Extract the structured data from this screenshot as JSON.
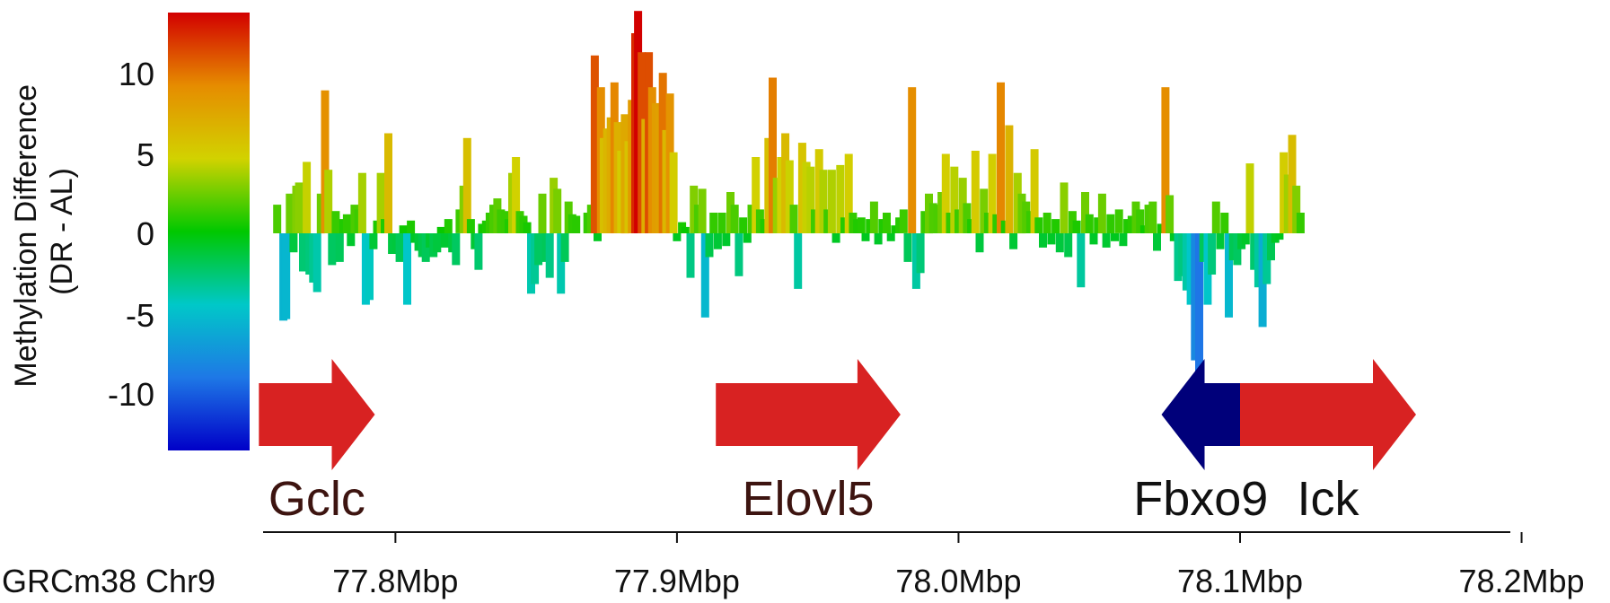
{
  "chart_data": {
    "type": "bar",
    "title": "",
    "xlabel": "",
    "ylabel": "Methylation Difference\n(DR - AL)",
    "ylabel_lines": [
      "Methylation Difference",
      "(DR - AL)"
    ],
    "ylim": [
      -13.5,
      13.9
    ],
    "yticks": [
      10,
      5,
      0,
      -5,
      -10
    ],
    "ytick_labels": [
      "10",
      "5",
      "0",
      "-5",
      "-10"
    ],
    "xlim_mbp": [
      77.753,
      78.196
    ],
    "xticks_mbp": [
      77.8,
      77.9,
      78.0,
      78.1,
      78.2
    ],
    "xtick_labels": [
      "77.8Mbp",
      "77.9Mbp",
      "78.0Mbp",
      "78.1Mbp",
      "78.2Mbp"
    ],
    "genome_label": "GRCm38 Chr9",
    "grid": false,
    "colorbar": {
      "min": -13.5,
      "max": 13.9,
      "colors": [
        "#0000c8",
        "#1e78e6",
        "#00c8c8",
        "#00c800",
        "#d2d200",
        "#e68c00",
        "#d20000"
      ]
    },
    "series": [
      {
        "values": [
          [
            77.758,
            1.8
          ],
          [
            77.7602,
            -5.5
          ],
          [
            77.7612,
            -5.4
          ],
          [
            77.7625,
            2.5
          ],
          [
            77.7638,
            -1.2
          ],
          [
            77.7648,
            3.0
          ],
          [
            77.7658,
            3.2
          ],
          [
            77.7672,
            -2.4
          ],
          [
            77.7685,
            4.5
          ],
          [
            77.7695,
            -2.6
          ],
          [
            77.7708,
            -3.1
          ],
          [
            77.7722,
            -3.7
          ],
          [
            77.7735,
            2.5
          ],
          [
            77.775,
            9.0
          ],
          [
            77.7762,
            4.0
          ],
          [
            77.7775,
            -2.0
          ],
          [
            77.7788,
            1.4
          ],
          [
            77.7802,
            -1.8
          ],
          [
            77.7815,
            0.9
          ],
          [
            77.7828,
            1.2
          ],
          [
            77.7842,
            -0.8
          ],
          [
            77.7855,
            1.8
          ],
          [
            77.7868,
            1.5
          ],
          [
            77.7882,
            3.8
          ],
          [
            77.7895,
            -4.5
          ],
          [
            77.7908,
            -4.2
          ],
          [
            77.7922,
            -1.0
          ],
          [
            77.7935,
            0.8
          ],
          [
            77.7948,
            3.8
          ],
          [
            77.7962,
            0.9
          ],
          [
            77.7975,
            6.3
          ],
          [
            77.7988,
            -1.3
          ],
          [
            77.8002,
            -1.2
          ],
          [
            77.8015,
            -1.8
          ],
          [
            77.8028,
            0.5
          ],
          [
            77.8042,
            -4.5
          ],
          [
            77.8055,
            0.8
          ],
          [
            77.8068,
            -0.6
          ],
          [
            77.8082,
            -1.1
          ],
          [
            77.8095,
            -1.5
          ],
          [
            77.8108,
            -1.8
          ],
          [
            77.8122,
            -0.9
          ],
          [
            77.8135,
            -1.5
          ],
          [
            77.8148,
            -1.2
          ],
          [
            77.8162,
            0.4
          ],
          [
            77.8175,
            -0.9
          ],
          [
            77.8188,
            0.9
          ],
          [
            77.8202,
            -1.2
          ],
          [
            77.8215,
            -2.0
          ],
          [
            77.8228,
            1.5
          ],
          [
            77.8242,
            3.0
          ],
          [
            77.8255,
            6.0
          ],
          [
            77.8268,
            0.9
          ],
          [
            77.8282,
            -1.0
          ],
          [
            77.8295,
            -2.3
          ],
          [
            77.8308,
            0.6
          ],
          [
            77.8322,
            0.8
          ],
          [
            77.8335,
            1.3
          ],
          [
            77.8348,
            1.8
          ],
          [
            77.8362,
            2.2
          ],
          [
            77.8375,
            1.5
          ],
          [
            77.8388,
            1.4
          ],
          [
            77.8402,
            0.9
          ],
          [
            77.8415,
            3.8
          ],
          [
            77.8428,
            4.8
          ],
          [
            77.8442,
            1.4
          ],
          [
            77.8455,
            1.1
          ],
          [
            77.8468,
            0.7
          ],
          [
            77.8482,
            -3.8
          ],
          [
            77.8495,
            -3.2
          ],
          [
            77.8508,
            -2.0
          ],
          [
            77.8522,
            2.5
          ],
          [
            77.8535,
            -1.8
          ],
          [
            77.8548,
            -2.8
          ],
          [
            77.8562,
            3.5
          ],
          [
            77.8575,
            2.8
          ],
          [
            77.8588,
            -3.8
          ],
          [
            77.8602,
            -1.8
          ],
          [
            77.8615,
            2.0
          ],
          [
            77.8628,
            1.2
          ],
          [
            77.8642,
            1.1
          ],
          [
            77.8682,
            1.3
          ],
          [
            77.8695,
            1.8
          ],
          [
            77.8708,
            11.2
          ],
          [
            77.8718,
            -0.5
          ],
          [
            77.873,
            9.2
          ],
          [
            77.874,
            6.0
          ],
          [
            77.8752,
            6.6
          ],
          [
            77.8765,
            7.3
          ],
          [
            77.8778,
            9.5
          ],
          [
            77.879,
            7.0
          ],
          [
            77.8802,
            5.2
          ],
          [
            77.8815,
            7.5
          ],
          [
            77.8828,
            5.8
          ],
          [
            77.884,
            8.4
          ],
          [
            77.8852,
            12.6
          ],
          [
            77.8862,
            14.0
          ],
          [
            77.8875,
            11.4
          ],
          [
            77.8888,
            7.2
          ],
          [
            77.89,
            11.4
          ],
          [
            77.8912,
            9.2
          ],
          [
            77.8925,
            8.2
          ],
          [
            77.8938,
            8.0
          ],
          [
            77.895,
            10.1
          ],
          [
            77.8962,
            6.5
          ],
          [
            77.8975,
            8.8
          ],
          [
            77.8988,
            5.1
          ],
          [
            77.9,
            -0.5
          ],
          [
            77.9018,
            0.7
          ],
          [
            77.903,
            0.4
          ],
          [
            77.9048,
            -2.8
          ],
          [
            77.906,
            3.0
          ],
          [
            77.9075,
            1.8
          ],
          [
            77.909,
            2.8
          ],
          [
            77.91,
            -5.3
          ],
          [
            77.9115,
            -1.5
          ],
          [
            77.913,
            1.3
          ],
          [
            77.9145,
            -1.0
          ],
          [
            77.916,
            1.3
          ],
          [
            77.9175,
            -0.8
          ],
          [
            77.919,
            2.6
          ],
          [
            77.9205,
            1.8
          ],
          [
            77.922,
            -2.7
          ],
          [
            77.9235,
            1.0
          ],
          [
            77.925,
            -0.6
          ],
          [
            77.9265,
            1.8
          ],
          [
            77.928,
            4.8
          ],
          [
            77.9295,
            1.5
          ],
          [
            77.931,
            0.9
          ],
          [
            77.9325,
            6.0
          ],
          [
            77.934,
            9.8
          ],
          [
            77.9355,
            3.5
          ],
          [
            77.937,
            4.8
          ],
          [
            77.9385,
            6.3
          ],
          [
            77.94,
            4.6
          ],
          [
            77.9415,
            1.8
          ],
          [
            77.943,
            -3.5
          ],
          [
            77.9445,
            5.7
          ],
          [
            77.946,
            4.5
          ],
          [
            77.9475,
            4.2
          ],
          [
            77.949,
            1.5
          ],
          [
            77.9505,
            5.3
          ],
          [
            77.952,
            4.0
          ],
          [
            77.9535,
            1.5
          ],
          [
            77.955,
            4.0
          ],
          [
            77.9565,
            -0.6
          ],
          [
            77.958,
            4.3
          ],
          [
            77.9595,
            1.0
          ],
          [
            77.961,
            5.0
          ],
          [
            77.9625,
            1.3
          ],
          [
            77.964,
            0.9
          ],
          [
            77.9655,
            1.0
          ],
          [
            77.967,
            -0.5
          ],
          [
            77.9685,
            0.9
          ],
          [
            77.97,
            2.0
          ],
          [
            77.9715,
            -0.7
          ],
          [
            77.973,
            0.9
          ],
          [
            77.9745,
            1.3
          ],
          [
            77.976,
            -0.5
          ],
          [
            77.9775,
            0.5
          ],
          [
            77.979,
            1.0
          ],
          [
            77.9805,
            1.5
          ],
          [
            77.982,
            -1.8
          ],
          [
            77.9835,
            9.2
          ],
          [
            77.985,
            -3.5
          ],
          [
            77.9865,
            -2.5
          ],
          [
            77.988,
            1.4
          ],
          [
            77.9895,
            2.5
          ],
          [
            77.991,
            1.9
          ],
          [
            77.9925,
            1.8
          ],
          [
            77.994,
            2.6
          ],
          [
            77.9955,
            5.0
          ],
          [
            77.997,
            1.3
          ],
          [
            77.9985,
            4.2
          ],
          [
            78.0,
            1.5
          ],
          [
            78.0015,
            3.5
          ],
          [
            78.003,
            1.9
          ],
          [
            78.0045,
            0.9
          ],
          [
            78.006,
            5.2
          ],
          [
            78.0075,
            -1.2
          ],
          [
            78.009,
            2.8
          ],
          [
            78.0105,
            1.3
          ],
          [
            78.012,
            5.0
          ],
          [
            78.0135,
            1.2
          ],
          [
            78.015,
            9.5
          ],
          [
            78.0165,
            0.8
          ],
          [
            78.018,
            6.8
          ],
          [
            78.0195,
            -1.0
          ],
          [
            78.021,
            3.8
          ],
          [
            78.0225,
            2.5
          ],
          [
            78.024,
            2.0
          ],
          [
            78.0255,
            1.4
          ],
          [
            78.027,
            5.3
          ],
          [
            78.0285,
            1.0
          ],
          [
            78.03,
            -0.9
          ],
          [
            78.0315,
            1.3
          ],
          [
            78.033,
            -0.7
          ],
          [
            78.0345,
            0.9
          ],
          [
            78.036,
            -1.2
          ],
          [
            78.0375,
            3.2
          ],
          [
            78.039,
            -1.5
          ],
          [
            78.0405,
            1.4
          ],
          [
            78.042,
            0.8
          ],
          [
            78.0435,
            -3.4
          ],
          [
            78.045,
            2.6
          ],
          [
            78.0465,
            1.2
          ],
          [
            78.048,
            -0.7
          ],
          [
            78.0495,
            1.0
          ],
          [
            78.051,
            2.5
          ],
          [
            78.0525,
            -0.9
          ],
          [
            78.054,
            1.2
          ],
          [
            78.0555,
            -0.5
          ],
          [
            78.057,
            1.5
          ],
          [
            78.0585,
            -0.8
          ],
          [
            78.06,
            0.9
          ],
          [
            78.0615,
            1.1
          ],
          [
            78.063,
            2.0
          ],
          [
            78.0645,
            1.5
          ],
          [
            78.066,
            0.5
          ],
          [
            78.0675,
            1.8
          ],
          [
            78.069,
            2.0
          ],
          [
            78.0705,
            -1.1
          ],
          [
            78.072,
            0.6
          ],
          [
            78.0735,
            9.2
          ],
          [
            78.075,
            2.4
          ],
          [
            78.0765,
            -0.5
          ],
          [
            78.078,
            -3.0
          ],
          [
            78.0795,
            -2.7
          ],
          [
            78.081,
            -3.6
          ],
          [
            78.0825,
            -4.5
          ],
          [
            78.084,
            -8.0
          ],
          [
            78.0855,
            -9.0
          ],
          [
            78.087,
            -1.8
          ],
          [
            78.0885,
            -4.5
          ],
          [
            78.09,
            -2.6
          ],
          [
            78.0915,
            2.0
          ],
          [
            78.093,
            -1.0
          ],
          [
            78.0945,
            1.3
          ],
          [
            78.096,
            -5.3
          ],
          [
            78.0975,
            -1.7
          ],
          [
            78.099,
            -2.0
          ],
          [
            78.1005,
            -1.0
          ],
          [
            78.102,
            -0.7
          ],
          [
            78.1035,
            4.4
          ],
          [
            78.105,
            -2.3
          ],
          [
            78.1065,
            -3.4
          ],
          [
            78.108,
            -5.9
          ],
          [
            78.1095,
            -3.2
          ],
          [
            78.111,
            -1.7
          ],
          [
            78.1125,
            -0.6
          ],
          [
            78.114,
            -0.4
          ],
          [
            78.1155,
            5.1
          ],
          [
            78.117,
            3.7
          ],
          [
            78.1185,
            6.2
          ],
          [
            78.12,
            3.0
          ],
          [
            78.1215,
            1.3
          ]
        ]
      }
    ]
  },
  "genes": [
    {
      "name": "Gclc",
      "strand": "+",
      "start": 77.7515,
      "end": 77.7927,
      "color": "#d82222",
      "label_color": "#3d1410"
    },
    {
      "name": "Elovl5",
      "strand": "+",
      "start": 77.9138,
      "end": 77.9794,
      "color": "#d82222",
      "label_color": "#3d1410"
    },
    {
      "name": "Fbxo9",
      "strand": "-",
      "start": 78.0721,
      "end": 78.1,
      "color": "#00007a",
      "label_color": "#111111"
    },
    {
      "name": "Ick",
      "strand": "+",
      "start": 78.1,
      "end": 78.1625,
      "color": "#d82222",
      "label_color": "#111111"
    }
  ]
}
